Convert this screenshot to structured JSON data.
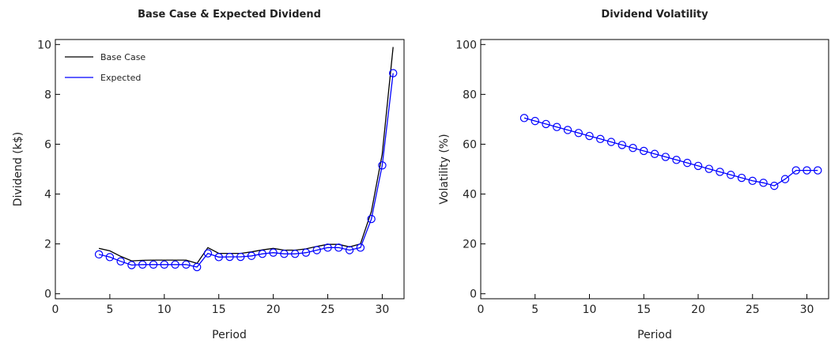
{
  "chart_data": [
    {
      "type": "line",
      "title": "Base Case & Expected Dividend",
      "xlabel": "Period",
      "ylabel": "Dividend (k$)",
      "xlim": [
        0,
        32
      ],
      "ylim": [
        -0.2,
        10.2
      ],
      "xticks": [
        0,
        5,
        10,
        15,
        20,
        25,
        30
      ],
      "yticks": [
        0,
        2,
        4,
        6,
        8,
        10
      ],
      "legend": "top-left",
      "grid": false,
      "series": [
        {
          "name": "Base Case",
          "color": "#000000",
          "markers": false,
          "x": [
            4,
            5,
            6,
            7,
            8,
            9,
            10,
            11,
            12,
            13,
            14,
            15,
            16,
            17,
            18,
            19,
            20,
            21,
            22,
            23,
            24,
            25,
            26,
            27,
            28,
            29,
            30,
            31
          ],
          "y": [
            1.82,
            1.72,
            1.5,
            1.32,
            1.34,
            1.35,
            1.35,
            1.35,
            1.35,
            1.22,
            1.85,
            1.62,
            1.62,
            1.62,
            1.68,
            1.76,
            1.82,
            1.75,
            1.75,
            1.8,
            1.9,
            1.98,
            1.98,
            1.88,
            2.0,
            3.3,
            5.6,
            9.9
          ]
        },
        {
          "name": "Expected",
          "color": "#0000ff",
          "markers": true,
          "x": [
            4,
            5,
            6,
            7,
            8,
            9,
            10,
            11,
            12,
            13,
            14,
            15,
            16,
            17,
            18,
            19,
            20,
            21,
            22,
            23,
            24,
            25,
            26,
            27,
            28,
            29,
            30,
            31
          ],
          "y": [
            1.58,
            1.47,
            1.3,
            1.15,
            1.17,
            1.17,
            1.17,
            1.17,
            1.17,
            1.07,
            1.62,
            1.47,
            1.48,
            1.48,
            1.52,
            1.6,
            1.65,
            1.6,
            1.6,
            1.65,
            1.75,
            1.85,
            1.85,
            1.75,
            1.85,
            3.0,
            5.15,
            8.85
          ]
        }
      ]
    },
    {
      "type": "line",
      "title": "Dividend Volatility",
      "xlabel": "Period",
      "ylabel": "Volatility (%)",
      "xlim": [
        0,
        32
      ],
      "ylim": [
        -2,
        102
      ],
      "xticks": [
        0,
        5,
        10,
        15,
        20,
        25,
        30
      ],
      "yticks": [
        0,
        20,
        40,
        60,
        80,
        100
      ],
      "grid": false,
      "series": [
        {
          "color": "#0000ff",
          "markers": true,
          "x": [
            4,
            5,
            6,
            7,
            8,
            9,
            10,
            11,
            12,
            13,
            14,
            15,
            16,
            17,
            18,
            19,
            20,
            21,
            22,
            23,
            24,
            25,
            26,
            27,
            28,
            29,
            30,
            31
          ],
          "y": [
            70.5,
            69.3,
            68.1,
            66.9,
            65.7,
            64.5,
            63.3,
            62.1,
            60.9,
            59.7,
            58.5,
            57.3,
            56.1,
            54.9,
            53.7,
            52.5,
            51.3,
            50.1,
            48.9,
            47.7,
            46.5,
            45.3,
            44.5,
            43.3,
            46.0,
            49.5,
            49.5,
            49.5
          ]
        }
      ]
    }
  ]
}
